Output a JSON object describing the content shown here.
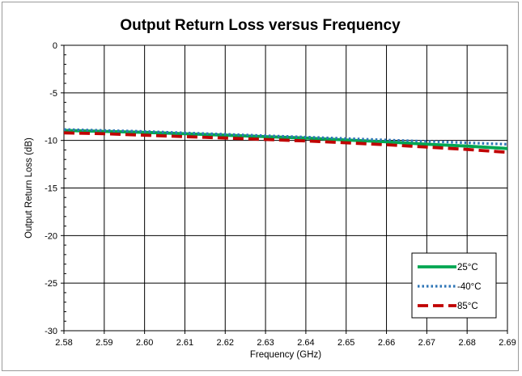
{
  "chart_data": {
    "type": "line",
    "title": "Output Return Loss versus Frequency",
    "xlabel": "Frequency (GHz)",
    "ylabel": "Output Return Loss (dB)",
    "xlim": [
      2.58,
      2.69
    ],
    "ylim": [
      -30,
      0
    ],
    "xticks": [
      "2.58",
      "2.59",
      "2.60",
      "2.61",
      "2.62",
      "2.63",
      "2.64",
      "2.65",
      "2.66",
      "2.67",
      "2.68",
      "2.69"
    ],
    "yticks": [
      "0",
      "-5",
      "-10",
      "-15",
      "-20",
      "-25",
      "-30"
    ],
    "grid": true,
    "legend_position": "bottom-right",
    "x": [
      2.58,
      2.59,
      2.6,
      2.61,
      2.62,
      2.63,
      2.64,
      2.65,
      2.66,
      2.67,
      2.68,
      2.69
    ],
    "series": [
      {
        "name": "25°C",
        "color": "#00a651",
        "style": "solid",
        "values": [
          -8.95,
          -9.05,
          -9.15,
          -9.3,
          -9.45,
          -9.6,
          -9.75,
          -9.95,
          -10.15,
          -10.4,
          -10.6,
          -10.85
        ]
      },
      {
        "name": "-40°C",
        "color": "#2e75b6",
        "style": "dotted",
        "values": [
          -8.85,
          -8.95,
          -9.05,
          -9.2,
          -9.35,
          -9.5,
          -9.65,
          -9.8,
          -9.95,
          -10.1,
          -10.25,
          -10.4
        ]
      },
      {
        "name": "85°C",
        "color": "#c00000",
        "style": "dashed",
        "values": [
          -9.2,
          -9.3,
          -9.45,
          -9.6,
          -9.75,
          -9.9,
          -10.05,
          -10.25,
          -10.45,
          -10.7,
          -10.95,
          -11.25
        ]
      }
    ]
  }
}
